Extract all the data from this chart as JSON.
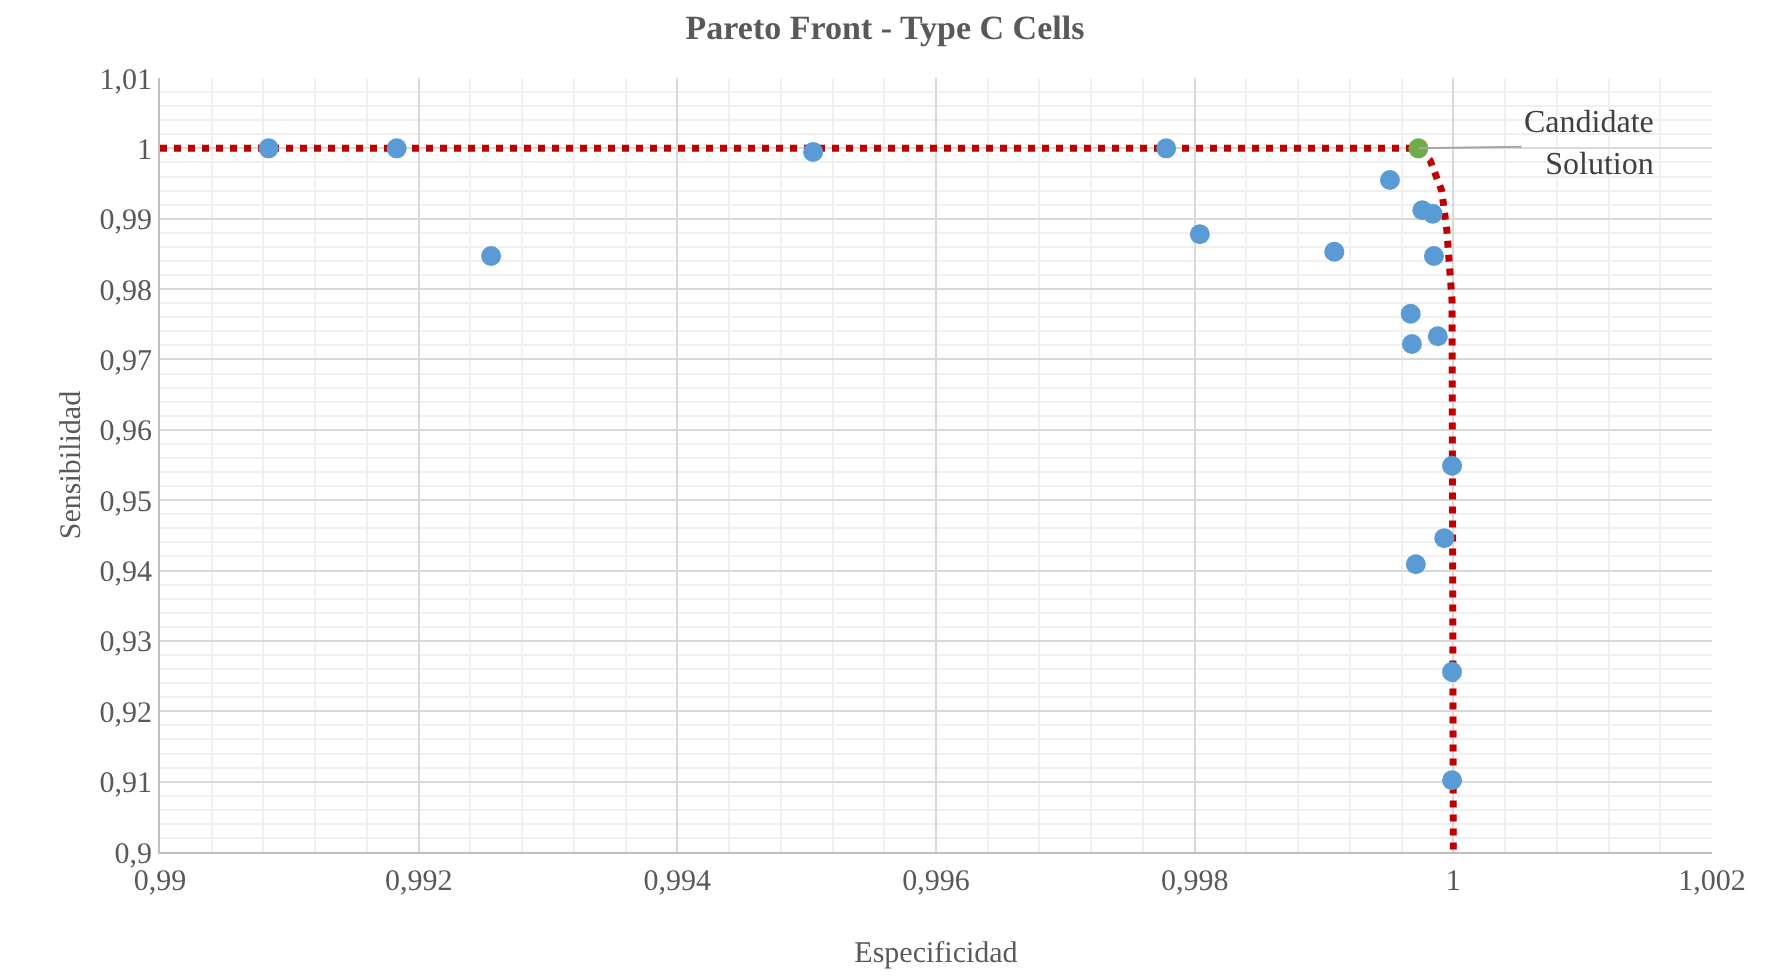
{
  "chart_data": {
    "type": "scatter",
    "title": "Pareto Front - Type C Cells",
    "xlabel": "Especificidad",
    "ylabel": "Sensibilidad",
    "xlim": [
      0.99,
      1.002
    ],
    "xticks": [
      {
        "value": 0.99,
        "label": "0,99"
      },
      {
        "value": 0.992,
        "label": "0,992"
      },
      {
        "value": 0.994,
        "label": "0,994"
      },
      {
        "value": 0.996,
        "label": "0,996"
      },
      {
        "value": 0.998,
        "label": "0,998"
      },
      1,
      {
        "value": 1.002,
        "label": "1,002"
      }
    ],
    "ylim": [
      0.9,
      1.01
    ],
    "yticks": [
      {
        "value": 0.9,
        "label": "0,9"
      },
      {
        "value": 0.91,
        "label": "0,91"
      },
      {
        "value": 0.92,
        "label": "0,92"
      },
      {
        "value": 0.93,
        "label": "0,93"
      },
      {
        "value": 0.94,
        "label": "0,94"
      },
      {
        "value": 0.95,
        "label": "0,95"
      },
      {
        "value": 0.96,
        "label": "0,96"
      },
      {
        "value": 0.97,
        "label": "0,97"
      },
      {
        "value": 0.98,
        "label": "0,98"
      },
      {
        "value": 0.99,
        "label": "0,99"
      },
      1,
      {
        "value": 1.01,
        "label": "1,01"
      }
    ],
    "grid": true,
    "series": [
      {
        "type": "line",
        "color": "#c00000",
        "line_style": "dotted",
        "marker": "none",
        "x": [
          0.99,
          0.99973,
          0.99982,
          0.99991,
          0.99995,
          0.99999,
          1.0
        ],
        "values": [
          1.0,
          1.0,
          0.9983,
          0.994,
          0.9883,
          0.9784,
          0.9
        ]
      },
      {
        "marker": "circle",
        "colors": [
          "#5b9bd5",
          "#5b9bd5",
          "#5b9bd5",
          "#5b9bd5",
          "#5b9bd5",
          "#5b9bd5",
          "#5b9bd5",
          "#5b9bd5",
          "#70ad47",
          "#5b9bd5",
          "#5b9bd5",
          "#5b9bd5",
          "#5b9bd5",
          "#5b9bd5",
          "#5b9bd5",
          "#5b9bd5",
          "#5b9bd5",
          "#5b9bd5",
          "#5b9bd5",
          "#5b9bd5"
        ],
        "x": [
          0.99084,
          0.99183,
          0.99256,
          0.99505,
          0.99778,
          0.99804,
          0.99908,
          0.99951,
          0.99973,
          0.99976,
          0.99984,
          0.99985,
          0.99967,
          0.99968,
          0.99988,
          0.99999,
          0.99993,
          0.99971,
          0.99999,
          0.99999
        ],
        "values": [
          1.0,
          1.0,
          0.9847,
          0.9995,
          1.0,
          0.9878,
          0.9853,
          0.9955,
          1.0,
          0.9912,
          0.9907,
          0.9847,
          0.9765,
          0.9722,
          0.9733,
          0.9549,
          0.9446,
          0.9409,
          0.9256,
          0.9102
        ]
      }
    ],
    "annotations": [
      {
        "text": "Candidate Solution",
        "x": 0.99973,
        "y": 1.0
      }
    ]
  }
}
